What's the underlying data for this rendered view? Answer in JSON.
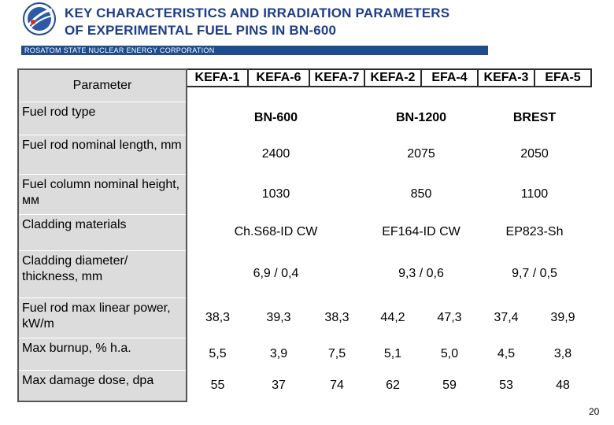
{
  "header": {
    "title_line1": "KEY CHARACTERISTICS AND IRRADIATION PARAMETERS",
    "title_line2": "OF EXPERIMENTAL FUEL PINS IN BN-600",
    "corporation": "ROSATOM STATE NUCLEAR ENERGY CORPORATION",
    "logo_icon": "rosatom-logo-icon"
  },
  "table": {
    "param_header": "Parameter",
    "experiments": [
      "KEFA-1",
      "KEFA-6",
      "KEFA-7",
      "KEFA-2",
      "EFA-4",
      "KEFA-3",
      "EFA-5"
    ],
    "rows": [
      {
        "label": "Fuel rod type",
        "groups": [
          "BN-600",
          "BN-1200",
          "BREST"
        ]
      },
      {
        "label": "Fuel rod nominal length, mm",
        "groups": [
          "2400",
          "2075",
          "2050"
        ]
      },
      {
        "label": "Fuel column nominal height, мм",
        "groups": [
          "1030",
          "850",
          "1100"
        ]
      },
      {
        "label": "Cladding materials",
        "groups": [
          "Ch.S68-ID CW",
          "EF164-ID CW",
          "EP823-Sh"
        ]
      },
      {
        "label": "Cladding diameter/ thickness, mm",
        "groups": [
          "6,9 / 0,4",
          "9,3 / 0,6",
          "9,7 / 0,5"
        ]
      },
      {
        "label": "Fuel rod max linear power, kW/m",
        "values": [
          "38,3",
          "39,3",
          "38,3",
          "44,2",
          "47,3",
          "37,4",
          "39,9"
        ]
      },
      {
        "label": "Max burnup, % h.a.",
        "values": [
          "5,5",
          "3,9",
          "7,5",
          "5,1",
          "5,0",
          "4,5",
          "3,8"
        ]
      },
      {
        "label": "Max damage dose, dpa",
        "values": [
          "55",
          "37",
          "74",
          "62",
          "59",
          "53",
          "48"
        ]
      }
    ]
  },
  "footer": {
    "page_number": "20"
  },
  "colors": {
    "title": "#1f3d8a",
    "band": "#1f4c8f",
    "param_bg": "#dcdcdc"
  }
}
